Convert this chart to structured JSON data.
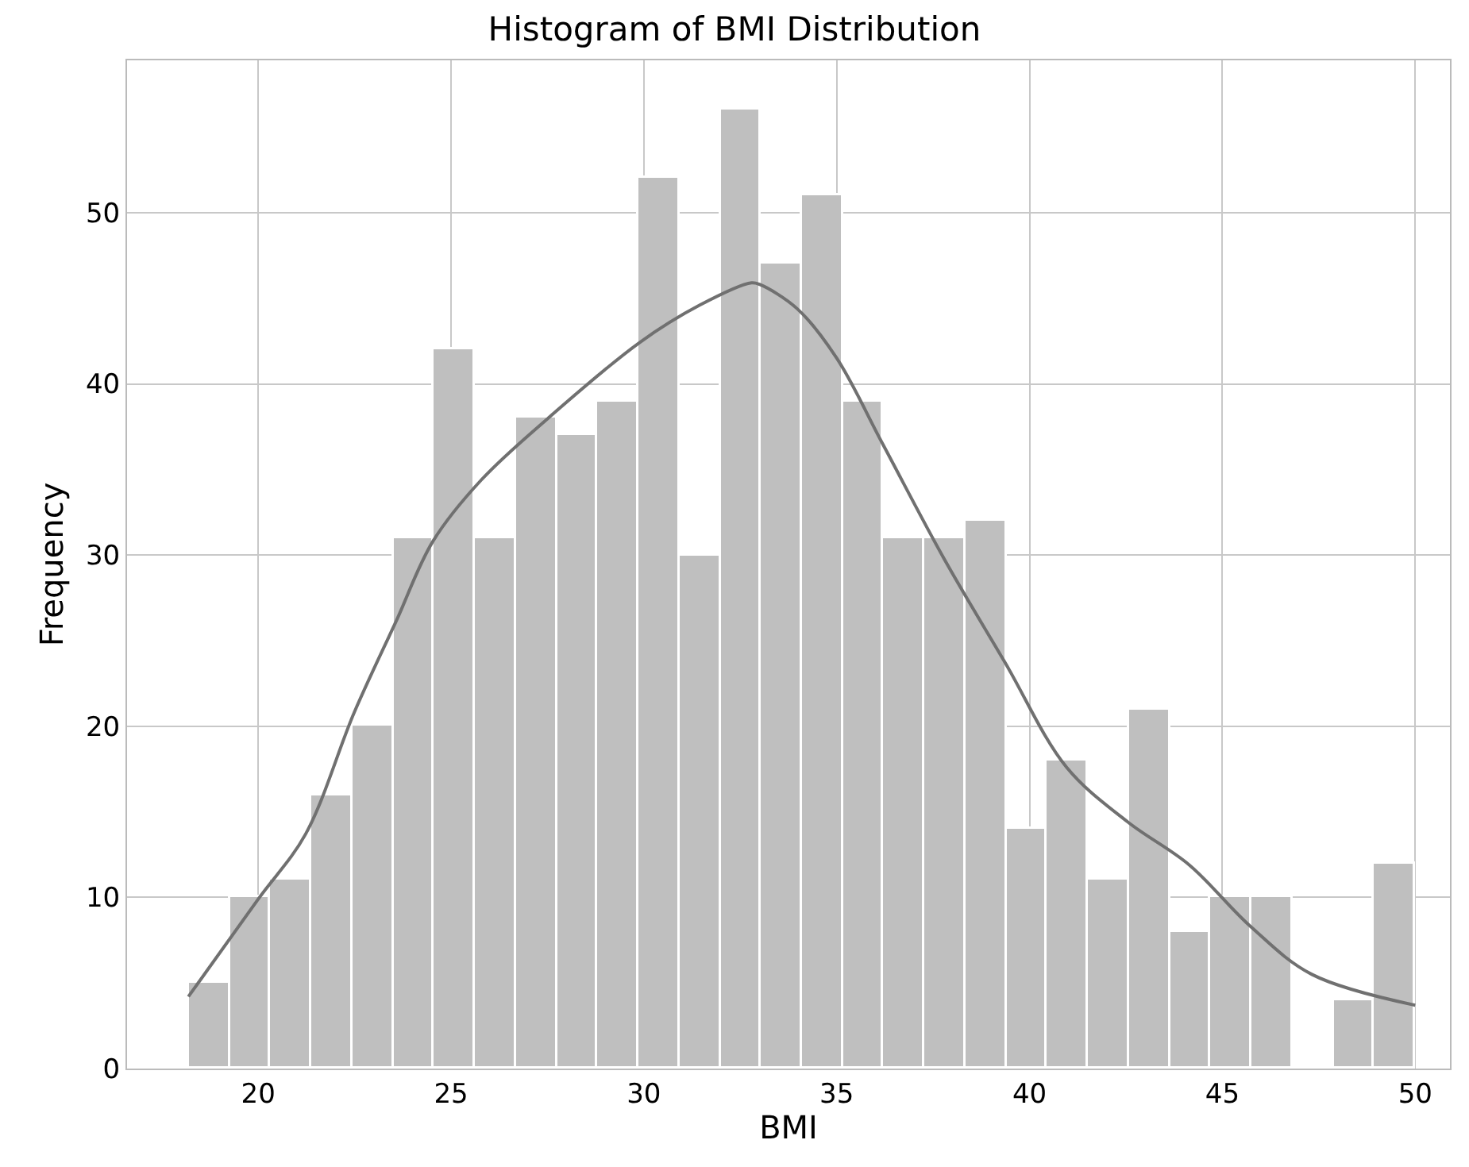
{
  "chart_data": {
    "type": "histogram",
    "title": "Histogram of BMI Distribution",
    "xlabel": "BMI",
    "ylabel": "Frequency",
    "bins": [
      18.2,
      19.26,
      20.32,
      21.38,
      22.44,
      23.5,
      24.56,
      25.62,
      26.68,
      27.74,
      28.8,
      29.86,
      30.92,
      31.98,
      33.04,
      34.1,
      35.16,
      36.22,
      37.28,
      38.34,
      39.4,
      40.46,
      41.52,
      42.58,
      43.64,
      44.7,
      45.76,
      46.82,
      47.88,
      48.94,
      50.0
    ],
    "values": [
      5,
      10,
      11,
      16,
      20,
      31,
      42,
      31,
      38,
      37,
      39,
      52,
      30,
      56,
      47,
      51,
      39,
      31,
      31,
      32,
      14,
      18,
      11,
      21,
      8,
      10,
      10,
      0,
      4,
      12
    ],
    "color": "#bfbfbf",
    "series": [
      {
        "type": "line",
        "color": "#707070",
        "x": [
          18.19,
          20.0,
          21.23,
          22.49,
          23.59,
          24.53,
          25.79,
          27.52,
          29.88,
          31.45,
          32.79,
          33.01,
          33.97,
          35.0,
          36.19,
          37.78,
          39.37,
          40.96,
          42.55,
          44.14,
          45.73,
          47.32,
          50.0
        ],
        "values": [
          4.2,
          9.9,
          13.7,
          20.8,
          26.2,
          30.8,
          34.4,
          38.0,
          42.4,
          44.6,
          45.9,
          45.8,
          44.4,
          41.5,
          36.5,
          29.8,
          23.7,
          17.6,
          14.4,
          11.9,
          8.3,
          5.5,
          3.7
        ]
      }
    ],
    "xlim": [
      16.6,
      50.9
    ],
    "xticks": [
      20,
      25,
      30,
      35,
      40,
      45,
      50
    ],
    "ylim": [
      0,
      58.9
    ],
    "yticks": [
      0,
      10,
      20,
      30,
      40,
      50
    ],
    "grid": true
  }
}
